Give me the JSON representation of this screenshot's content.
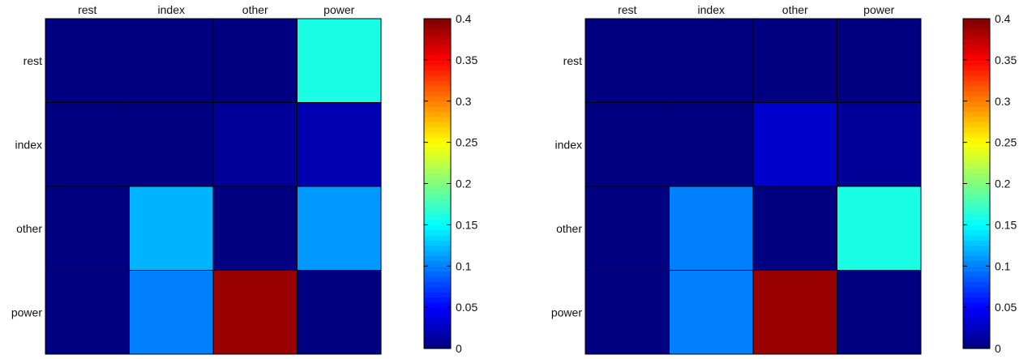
{
  "chart_data": [
    {
      "type": "heatmap",
      "title": "",
      "xlabel": "",
      "ylabel": "",
      "x_categories": [
        "rest",
        "index",
        "other",
        "power"
      ],
      "y_categories": [
        "rest",
        "index",
        "other",
        "power"
      ],
      "values": [
        [
          0.0,
          0.0,
          0.0,
          0.16
        ],
        [
          0.0,
          0.0,
          0.01,
          0.02
        ],
        [
          0.0,
          0.12,
          0.0,
          0.11
        ],
        [
          0.0,
          0.1,
          0.39,
          0.0
        ]
      ],
      "colorbar": {
        "range": [
          0,
          0.4
        ],
        "ticks": [
          "0",
          "0.05",
          "0.1",
          "0.15",
          "0.2",
          "0.25",
          "0.3",
          "0.35",
          "0.4"
        ],
        "colormap": "jet"
      }
    },
    {
      "type": "heatmap",
      "title": "",
      "xlabel": "",
      "ylabel": "",
      "x_categories": [
        "rest",
        "index",
        "other",
        "power"
      ],
      "y_categories": [
        "rest",
        "index",
        "other",
        "power"
      ],
      "values": [
        [
          0.0,
          0.0,
          0.0,
          0.0
        ],
        [
          0.0,
          0.0,
          0.03,
          0.01
        ],
        [
          0.0,
          0.1,
          0.0,
          0.16
        ],
        [
          0.0,
          0.1,
          0.39,
          0.0
        ]
      ],
      "colorbar": {
        "range": [
          0,
          0.4
        ],
        "ticks": [
          "0",
          "0.05",
          "0.1",
          "0.15",
          "0.2",
          "0.25",
          "0.3",
          "0.35",
          "0.4"
        ],
        "colormap": "jet"
      }
    }
  ],
  "colors": {
    "cell_border": "#000000",
    "background": "#ffffff"
  }
}
